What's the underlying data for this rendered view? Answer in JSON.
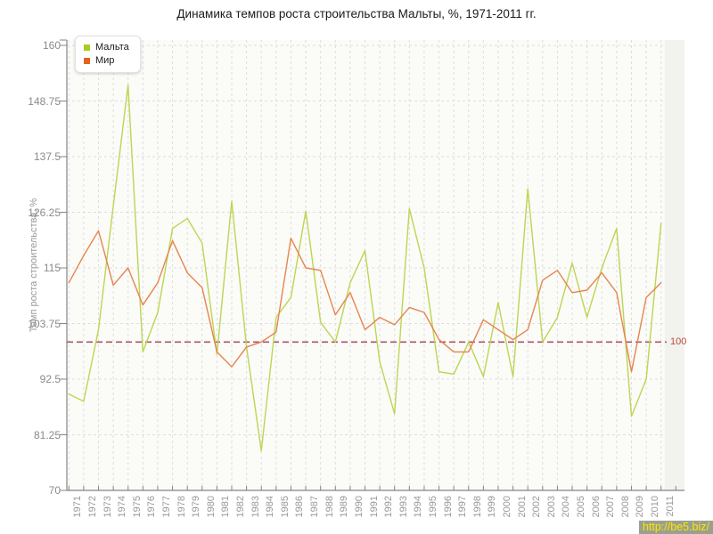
{
  "title": "Динамика темпов роста строительства Мальты, %, 1971-2011 гг.",
  "legend": {
    "items": [
      {
        "label": "Мальта",
        "color": "#a6ce1b"
      },
      {
        "label": "Мир",
        "color": "#e2641c"
      }
    ]
  },
  "y_axis": {
    "title": "Темп роста строительства, %",
    "tick_labels": [
      "160",
      "148.75",
      "137.5",
      "126.25",
      "115",
      "103.75",
      "92.5",
      "81.25",
      "70"
    ],
    "ticks": [
      160,
      148.75,
      137.5,
      126.25,
      115,
      103.75,
      92.5,
      81.25,
      70
    ]
  },
  "guide_line": {
    "value": 100,
    "label": "100",
    "line_color": "#a9546a",
    "label_color": "#ba4a40"
  },
  "watermark": "http://be5.biz/",
  "colors": {
    "plot_bg": "#fbfbf8",
    "plot_right_band": "#f2f2ee",
    "grid": "#dedede",
    "axis": "#858585"
  },
  "chart_data": {
    "type": "line",
    "title": "Динамика темпов роста строительства Мальты, %, 1971-2011 гг.",
    "xlabel": "",
    "ylabel": "Темп роста строительства, %",
    "ylim": [
      70,
      160
    ],
    "grid": true,
    "legend_position": "top-left",
    "guide_value": 100,
    "categories": [
      1971,
      1972,
      1973,
      1974,
      1975,
      1976,
      1977,
      1978,
      1979,
      1980,
      1981,
      1982,
      1983,
      1984,
      1985,
      1986,
      1987,
      1988,
      1989,
      1990,
      1991,
      1992,
      1993,
      1994,
      1995,
      1996,
      1997,
      1998,
      1999,
      2000,
      2001,
      2002,
      2003,
      2004,
      2005,
      2006,
      2007,
      2008,
      2009,
      2010,
      2011
    ],
    "series": [
      {
        "name": "Мальта",
        "color": "#bcd653",
        "values": [
          89.5,
          88,
          102.5,
          127.5,
          152,
          98,
          106,
          123,
          125,
          120,
          97.5,
          128.5,
          99,
          78,
          105,
          109,
          126.5,
          104,
          100,
          112,
          118.5,
          96,
          85.5,
          127,
          115,
          94,
          93.5,
          100,
          93,
          108,
          93,
          131,
          100,
          105,
          116,
          105,
          115,
          123,
          85,
          92.5,
          124
        ]
      },
      {
        "name": "Мир",
        "color": "#e6854f",
        "values": [
          112,
          117.5,
          122.5,
          111.5,
          115,
          107.5,
          112,
          120.5,
          114,
          111,
          98,
          95,
          99,
          100,
          102,
          121,
          115,
          114.5,
          105.5,
          110,
          102.5,
          105,
          103.5,
          107,
          106,
          100.5,
          98,
          98,
          104.5,
          102.5,
          100.5,
          102.5,
          112.5,
          114.5,
          110,
          110.5,
          114,
          110,
          94,
          109,
          112
        ]
      }
    ]
  }
}
